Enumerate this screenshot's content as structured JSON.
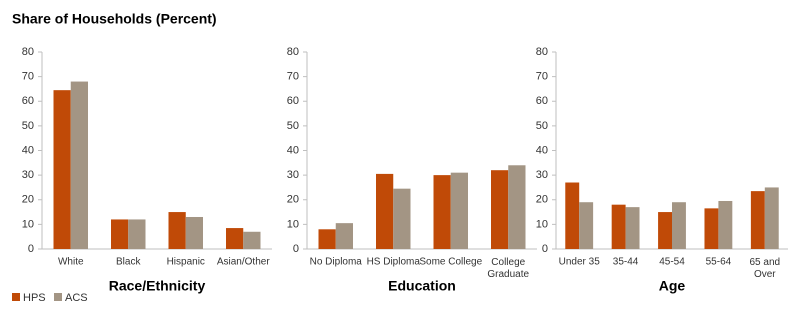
{
  "title": "Share of Households (Percent)",
  "chart_data": [
    {
      "type": "bar",
      "xlabel": "Race/Ethnicity",
      "categories": [
        "White",
        "Black",
        "Hispanic",
        "Asian/Other"
      ],
      "series": [
        {
          "name": "HPS",
          "color": "#c04a07",
          "values": [
            64.5,
            12,
            15,
            8.5
          ]
        },
        {
          "name": "ACS",
          "color": "#a39584",
          "values": [
            68,
            12,
            13,
            7
          ]
        }
      ],
      "ylim": [
        0,
        80
      ],
      "yticks": [
        0,
        10,
        20,
        30,
        40,
        50,
        60,
        70,
        80
      ]
    },
    {
      "type": "bar",
      "xlabel": "Education",
      "categories": [
        "No Diploma",
        "HS Diploma",
        "Some College",
        "College\nGraduate"
      ],
      "series": [
        {
          "color": "#c04a07",
          "values": [
            8,
            30.5,
            30,
            32
          ]
        },
        {
          "color": "#a39584",
          "values": [
            10.5,
            24.5,
            31,
            34
          ]
        }
      ],
      "ylim": [
        0,
        80
      ],
      "yticks": [
        0,
        10,
        20,
        30,
        40,
        50,
        60,
        70,
        80
      ]
    },
    {
      "type": "bar",
      "xlabel": "Age",
      "categories": [
        "Under 35",
        "35-44",
        "45-54",
        "55-64",
        "65 and\nOver"
      ],
      "series": [
        {
          "color": "#c04a07",
          "values": [
            27,
            18,
            15,
            16.5,
            23.5
          ]
        },
        {
          "color": "#a39584",
          "values": [
            19,
            17,
            19,
            19.5,
            25
          ]
        }
      ],
      "ylim": [
        0,
        80
      ],
      "yticks": [
        0,
        10,
        20,
        30,
        40,
        50,
        60,
        70,
        80
      ]
    }
  ]
}
